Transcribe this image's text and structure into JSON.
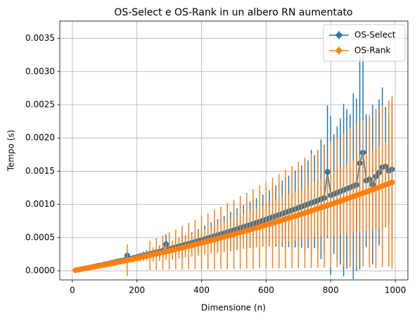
{
  "chart_data": {
    "type": "errorbar",
    "title": "OS-Select e OS-Rank in un albero RN aumentato",
    "xlabel": "Dimensione (n)",
    "ylabel": "Tempo (s)",
    "x": [
      10,
      20,
      30,
      40,
      50,
      60,
      70,
      80,
      90,
      100,
      110,
      120,
      130,
      140,
      150,
      160,
      170,
      180,
      190,
      200,
      210,
      220,
      230,
      240,
      250,
      260,
      270,
      280,
      290,
      300,
      310,
      320,
      330,
      340,
      350,
      360,
      370,
      380,
      390,
      400,
      410,
      420,
      430,
      440,
      450,
      460,
      470,
      480,
      490,
      500,
      510,
      520,
      530,
      540,
      550,
      560,
      570,
      580,
      590,
      600,
      610,
      620,
      630,
      640,
      650,
      660,
      670,
      680,
      690,
      700,
      710,
      720,
      730,
      740,
      750,
      760,
      770,
      780,
      790,
      800,
      810,
      820,
      830,
      840,
      850,
      860,
      870,
      880,
      890,
      900,
      910,
      920,
      930,
      940,
      950,
      960,
      970,
      980,
      990
    ],
    "series": [
      {
        "name": "OS-Select",
        "color": "#1f77b4",
        "values": [
          9e-06,
          1.8e-05,
          2.8e-05,
          3.7e-05,
          4.7e-05,
          5.6e-05,
          6.6e-05,
          7.6e-05,
          8.6e-05,
          9.7e-05,
          0.000107,
          0.000117,
          0.000128,
          0.000139,
          0.00015,
          0.000161,
          0.00023,
          0.000183,
          0.000194,
          0.000206,
          0.000218,
          0.000229,
          0.000241,
          0.000253,
          0.000266,
          0.000278,
          0.00029,
          0.000303,
          0.0004,
          0.000328,
          0.000341,
          0.000355,
          0.000368,
          0.000381,
          0.000395,
          0.000408,
          0.000422,
          0.000436,
          0.00045,
          0.000464,
          0.000478,
          0.000493,
          0.000507,
          0.000522,
          0.000537,
          0.000551,
          0.000567,
          0.000582,
          0.000597,
          0.000612,
          0.000628,
          0.000644,
          0.00066,
          0.000676,
          0.000692,
          0.000708,
          0.000724,
          0.000741,
          0.000757,
          0.000774,
          0.000791,
          0.000808,
          0.000825,
          0.000842,
          0.00086,
          0.000877,
          0.000895,
          0.000913,
          0.000931,
          0.000949,
          0.000967,
          0.000985,
          0.001003,
          0.001022,
          0.001041,
          0.001059,
          0.001078,
          0.001098,
          0.00149,
          0.001136,
          0.001156,
          0.001175,
          0.001195,
          0.001215,
          0.001235,
          0.001255,
          0.001275,
          0.001295,
          0.00162,
          0.00178,
          0.001357,
          0.001378,
          0.0013,
          0.00142,
          0.00148,
          0.00156,
          0.00157,
          0.001506,
          0.001528
        ],
        "errors": [
          3e-06,
          4e-06,
          5e-06,
          6e-06,
          8e-06,
          1e-05,
          1.2e-05,
          1.4e-05,
          1.6e-05,
          1.8e-05,
          2e-05,
          2.2e-05,
          2.5e-05,
          2.8e-05,
          4e-05,
          3.5e-05,
          6e-05,
          4e-05,
          4.5e-05,
          5e-05,
          5.5e-05,
          6e-05,
          6.5e-05,
          7e-05,
          7.5e-05,
          8e-05,
          9e-05,
          9.5e-05,
          0.00015,
          0.0001,
          0.00011,
          0.00012,
          0.00013,
          0.00018,
          0.00014,
          0.00015,
          0.00016,
          0.00017,
          0.00018,
          0.00019,
          0.0002,
          0.00021,
          0.00022,
          0.00023,
          0.00024,
          0.00025,
          0.00026,
          0.00028,
          0.00029,
          0.0003,
          0.00031,
          0.00032,
          0.00033,
          0.00034,
          0.00035,
          0.00036,
          0.00037,
          0.00038,
          0.00039,
          0.0004,
          0.00042,
          0.00044,
          0.00046,
          0.00048,
          0.0005,
          0.00052,
          0.00054,
          0.00056,
          0.00058,
          0.0006,
          0.00062,
          0.0007,
          0.00066,
          0.0008,
          0.0007,
          0.00075,
          0.0009,
          0.0008,
          0.001,
          0.0012,
          0.0009,
          0.001,
          0.0011,
          0.0013,
          0.0012,
          0.0011,
          0.0014,
          0.0013,
          0.0016,
          0.0015,
          0.001,
          0.0009,
          0.0012,
          0.001,
          0.0011,
          0.0012,
          0.0009,
          0.0008,
          0.001
        ]
      },
      {
        "name": "OS-Rank",
        "color": "#ff7f0e",
        "values": [
          9e-06,
          1.7e-05,
          2.6e-05,
          3.5e-05,
          4.4e-05,
          5.3e-05,
          6.2e-05,
          7.1e-05,
          8.1e-05,
          9e-05,
          0.0001,
          0.000109,
          0.000119,
          0.000129,
          0.000139,
          0.000149,
          0.000159,
          0.000169,
          0.00018,
          0.00019,
          0.000201,
          0.000211,
          0.000222,
          0.000233,
          0.000244,
          0.000255,
          0.000266,
          0.000277,
          0.000289,
          0.0003,
          0.000312,
          0.000323,
          0.000335,
          0.000347,
          0.000359,
          0.000371,
          0.000383,
          0.000395,
          0.000408,
          0.00042,
          0.000433,
          0.000445,
          0.000458,
          0.000471,
          0.000484,
          0.000497,
          0.00051,
          0.000523,
          0.000537,
          0.00055,
          0.000564,
          0.000577,
          0.000591,
          0.000605,
          0.000619,
          0.000633,
          0.000647,
          0.000661,
          0.000676,
          0.00069,
          0.000705,
          0.000719,
          0.000734,
          0.000749,
          0.000764,
          0.000779,
          0.000794,
          0.000809,
          0.000825,
          0.00084,
          0.000856,
          0.000871,
          0.000887,
          0.000903,
          0.000919,
          0.000935,
          0.000951,
          0.000967,
          0.000984,
          0.001,
          0.001017,
          0.001033,
          0.00105,
          0.001067,
          0.001084,
          0.001101,
          0.001118,
          0.001135,
          0.001153,
          0.00117,
          0.001188,
          0.001205,
          0.001223,
          0.001241,
          0.001259,
          0.001277,
          0.001295,
          0.001313,
          0.001332
        ],
        "errors": [
          3e-06,
          5e-06,
          8e-06,
          1e-05,
          1.3e-05,
          1.6e-05,
          1.9e-05,
          2.1e-05,
          2.4e-05,
          2.7e-05,
          3e-05,
          3.3e-05,
          3.6e-05,
          3.9e-05,
          4.2e-05,
          4.5e-05,
          0.00024,
          5.1e-05,
          5.4e-05,
          5.7e-05,
          6e-05,
          6.3e-05,
          6.7e-05,
          0.00022,
          0.00011,
          0.00024,
          0.00012,
          0.00026,
          0.00013,
          0.00028,
          0.00014,
          0.0003,
          0.00015,
          0.00033,
          0.00016,
          0.00035,
          0.00017,
          0.00037,
          0.00018,
          0.0004,
          0.00019,
          0.00042,
          0.0002,
          0.00045,
          0.00022,
          0.00047,
          0.00023,
          0.0005,
          0.00024,
          0.00052,
          0.00025,
          0.00055,
          0.00026,
          0.00057,
          0.00028,
          0.0006,
          0.00029,
          0.00062,
          0.0003,
          0.00065,
          0.00032,
          0.00068,
          0.00033,
          0.00071,
          0.00034,
          0.00074,
          0.00036,
          0.00077,
          0.00037,
          0.0008,
          0.00038,
          0.00083,
          0.0004,
          0.00086,
          0.00041,
          0.00089,
          0.00043,
          0.00092,
          0.00045,
          0.00095,
          0.00048,
          0.00098,
          0.0005,
          0.001,
          0.00052,
          0.00105,
          0.00054,
          0.00108,
          0.00056,
          0.0011,
          0.00058,
          0.00115,
          0.0006,
          0.0012,
          0.00062,
          0.00122,
          0.00064,
          0.00125,
          0.0013
        ]
      }
    ],
    "xlim": [
      -39,
      1039
    ],
    "xticks": [
      0,
      200,
      400,
      600,
      800,
      1000
    ],
    "ylim": [
      -0.000137,
      0.00376
    ],
    "yticks": [
      {
        "value": 0,
        "label": "0.0000"
      },
      0.0005,
      {
        "value": 0.001,
        "label": "0.0010"
      },
      0.0015,
      {
        "value": 0.002,
        "label": "0.0020"
      },
      0.0025,
      {
        "value": 0.003,
        "label": "0.0030"
      },
      0.0035
    ],
    "grid": true,
    "legend": "upper right"
  }
}
